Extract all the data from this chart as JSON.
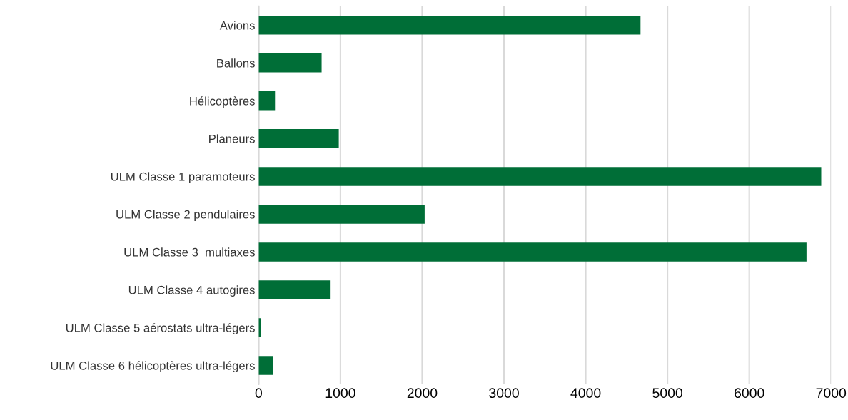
{
  "chart_data": {
    "type": "bar",
    "orientation": "horizontal",
    "categories": [
      "Avions",
      "Ballons",
      "Hélicoptères",
      "Planeurs",
      "ULM Classe 1 paramoteurs",
      "ULM Classe 2 pendulaires",
      "ULM Classe 3  multiaxes",
      "ULM Classe 4 autogires",
      "ULM Classe 5 aérostats ultra-légers",
      "ULM Classe 6 hélicoptères ultra-légers"
    ],
    "values": [
      4670,
      770,
      200,
      980,
      6880,
      2030,
      6700,
      880,
      30,
      180
    ],
    "color": "#006e37",
    "xlim": [
      0,
      7000
    ],
    "xticks": [
      0,
      1000,
      2000,
      3000,
      4000,
      5000,
      6000,
      7000
    ],
    "grid": "x"
  }
}
